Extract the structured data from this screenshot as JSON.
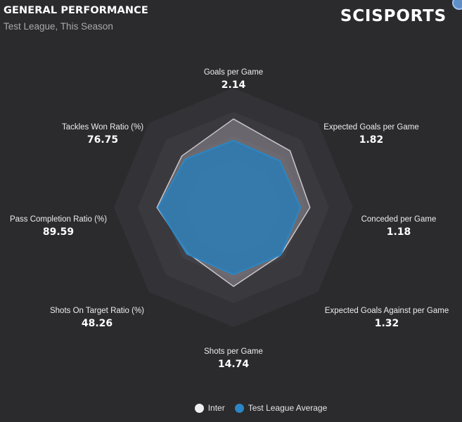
{
  "header": {
    "title": "GENERAL PERFORMANCE",
    "subtitle": "Test League, This Season",
    "brand": "SCISPORTS"
  },
  "chart_data": {
    "type": "radar",
    "axes": [
      {
        "label": "Goals per Game",
        "value": "2.14"
      },
      {
        "label": "Expected Goals per Game",
        "value": "1.82"
      },
      {
        "label": "Conceded per Game",
        "value": "1.18"
      },
      {
        "label": "Expected Goals Against per Game",
        "value": "1.32"
      },
      {
        "label": "Shots per Game",
        "value": "14.74"
      },
      {
        "label": "Shots On Target Ratio (%)",
        "value": "48.26"
      },
      {
        "label": "Pass Completion Ratio (%)",
        "value": "89.59"
      },
      {
        "label": "Tackles Won Ratio (%)",
        "value": "76.75"
      }
    ],
    "scale_rings": 5,
    "series": [
      {
        "name": "Inter",
        "color": "#c9c7cc",
        "fill": "#8f8d93",
        "values": [
          0.74,
          0.67,
          0.64,
          0.56,
          0.66,
          0.54,
          0.64,
          0.61
        ]
      },
      {
        "name": "Test League Average",
        "color": "#2b86c4",
        "fill": "#2a7db8",
        "values": [
          0.56,
          0.55,
          0.56,
          0.56,
          0.56,
          0.55,
          0.63,
          0.57
        ]
      }
    ]
  },
  "legend": [
    {
      "name": "Inter",
      "color": "#f0f0f0"
    },
    {
      "name": "Test League Average",
      "color": "#2b86c4"
    }
  ]
}
